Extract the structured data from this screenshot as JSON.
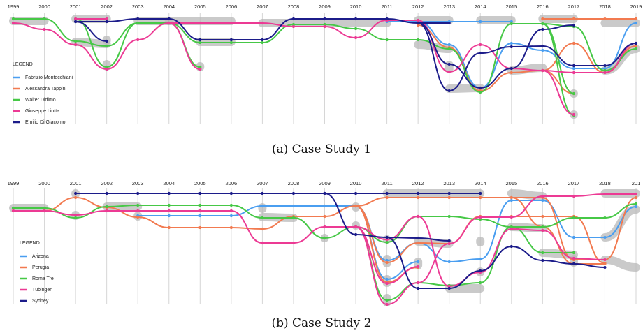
{
  "panels": [
    {
      "caption": "(a) Case Study 1",
      "years": [
        "1999",
        "2000",
        "2001",
        "2002",
        "2003",
        "2004",
        "2005",
        "2006",
        "2007",
        "2008",
        "2009",
        "2010",
        "2011",
        "2012",
        "2013",
        "2014",
        "2015",
        "2016",
        "2017",
        "2018",
        "2019"
      ],
      "legend": {
        "title": "LEGEND",
        "entries": [
          {
            "label": "Fabrizio Montecchiani",
            "color": "#4a9ef0"
          },
          {
            "label": "Alessandra Tappini",
            "color": "#f27a50"
          },
          {
            "label": "Walter Didimo",
            "color": "#46c846"
          },
          {
            "label": "Giuseppe Liotta",
            "color": "#ec3a94"
          },
          {
            "label": "Emilio Di Giacomo",
            "color": "#1c1c8a"
          }
        ]
      }
    },
    {
      "caption": "(b) Case Study 2",
      "years": [
        "1999",
        "2000",
        "2001",
        "2002",
        "2003",
        "2004",
        "2005",
        "2006",
        "2007",
        "2008",
        "2009",
        "2010",
        "2011",
        "2012",
        "2013",
        "2014",
        "2015",
        "2016",
        "2017",
        "2018",
        "201"
      ],
      "legend": {
        "title": "LEGEND",
        "entries": [
          {
            "label": "Arizona",
            "color": "#4a9ef0"
          },
          {
            "label": "Perugia",
            "color": "#f27a50"
          },
          {
            "label": "Roma Tre",
            "color": "#46c846"
          },
          {
            "label": "Tübingen",
            "color": "#ec3a94"
          },
          {
            "label": "Sydney",
            "color": "#1c1c8a"
          }
        ]
      }
    }
  ]
}
